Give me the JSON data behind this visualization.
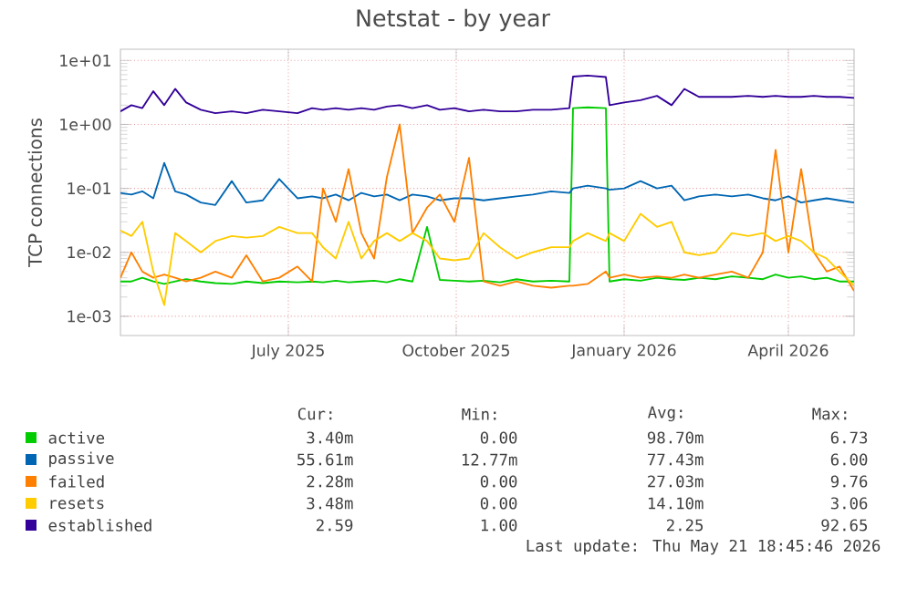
{
  "chart_data": {
    "type": "line",
    "title": "Netstat - by year",
    "ylabel": "TCP connections",
    "log": true,
    "grid": true,
    "legend": "bottom",
    "xlim": [
      "2025-04-14",
      "2026-05-21"
    ],
    "xticks": [
      {
        "value": "2025-07-15",
        "label": "July 2025"
      },
      {
        "value": "2025-10-15",
        "label": "October 2025"
      },
      {
        "value": "2026-01-15",
        "label": "January 2026"
      },
      {
        "value": "2026-04-15",
        "label": "April 2026"
      }
    ],
    "ylim": [
      0.0005,
      15
    ],
    "yticks": [
      {
        "value": 0.001,
        "label": "1e-03"
      },
      {
        "value": 0.01,
        "label": "1e-02"
      },
      {
        "value": 0.1,
        "label": "1e-01"
      },
      {
        "value": 1,
        "label": "1e+00"
      },
      {
        "value": 10,
        "label": "1e+01"
      }
    ],
    "x": [
      "2025-04-14",
      "2025-04-20",
      "2025-04-26",
      "2025-05-02",
      "2025-05-08",
      "2025-05-14",
      "2025-05-20",
      "2025-05-28",
      "2025-06-05",
      "2025-06-14",
      "2025-06-22",
      "2025-07-01",
      "2025-07-10",
      "2025-07-20",
      "2025-07-28",
      "2025-08-03",
      "2025-08-10",
      "2025-08-17",
      "2025-08-24",
      "2025-08-31",
      "2025-09-07",
      "2025-09-14",
      "2025-09-21",
      "2025-09-29",
      "2025-10-06",
      "2025-10-14",
      "2025-10-22",
      "2025-10-30",
      "2025-11-08",
      "2025-11-17",
      "2025-11-26",
      "2025-12-06",
      "2025-12-16",
      "2025-12-18",
      "2025-12-26",
      "2026-01-05",
      "2026-01-07",
      "2026-01-15",
      "2026-01-24",
      "2026-02-02",
      "2026-02-10",
      "2026-02-17",
      "2026-02-25",
      "2026-03-06",
      "2026-03-15",
      "2026-03-24",
      "2026-04-01",
      "2026-04-08",
      "2026-04-15",
      "2026-04-22",
      "2026-04-29",
      "2026-05-06",
      "2026-05-13",
      "2026-05-21"
    ],
    "series": [
      {
        "name": "active",
        "color": "#00cc00",
        "values": [
          0.0035,
          0.0035,
          0.004,
          0.0035,
          0.0032,
          0.0035,
          0.0038,
          0.0035,
          0.0033,
          0.0032,
          0.0035,
          0.0033,
          0.0035,
          0.0034,
          0.0035,
          0.0034,
          0.0036,
          0.0034,
          0.0035,
          0.0036,
          0.0034,
          0.0038,
          0.0035,
          0.025,
          0.0037,
          0.0036,
          0.0035,
          0.0036,
          0.0034,
          0.0038,
          0.0035,
          0.0036,
          0.0035,
          1.8,
          1.85,
          1.8,
          0.0035,
          0.0038,
          0.0036,
          0.004,
          0.0038,
          0.0037,
          0.004,
          0.0038,
          0.0042,
          0.004,
          0.0038,
          0.0045,
          0.004,
          0.0042,
          0.0038,
          0.004,
          0.0035,
          0.0035
        ]
      },
      {
        "name": "passive",
        "color": "#0066b3",
        "values": [
          0.085,
          0.08,
          0.09,
          0.07,
          0.25,
          0.09,
          0.08,
          0.06,
          0.055,
          0.13,
          0.06,
          0.065,
          0.14,
          0.07,
          0.075,
          0.07,
          0.08,
          0.065,
          0.085,
          0.075,
          0.08,
          0.065,
          0.08,
          0.075,
          0.065,
          0.07,
          0.07,
          0.065,
          0.07,
          0.075,
          0.08,
          0.09,
          0.085,
          0.1,
          0.11,
          0.1,
          0.095,
          0.1,
          0.13,
          0.1,
          0.11,
          0.065,
          0.075,
          0.08,
          0.075,
          0.08,
          0.07,
          0.065,
          0.075,
          0.06,
          0.065,
          0.07,
          0.065,
          0.06
        ]
      },
      {
        "name": "failed",
        "color": "#ff8000",
        "values": [
          0.004,
          0.01,
          0.005,
          0.004,
          0.0045,
          0.004,
          0.0035,
          0.004,
          0.005,
          0.004,
          0.009,
          0.0035,
          0.004,
          0.006,
          0.0035,
          0.1,
          0.03,
          0.2,
          0.02,
          0.008,
          0.15,
          1.0,
          0.02,
          0.05,
          0.08,
          0.03,
          0.3,
          0.0035,
          0.003,
          0.0035,
          0.003,
          0.0028,
          0.003,
          0.003,
          0.0032,
          0.005,
          0.004,
          0.0045,
          0.004,
          0.0042,
          0.004,
          0.0045,
          0.004,
          0.0045,
          0.005,
          0.004,
          0.01,
          0.4,
          0.01,
          0.2,
          0.01,
          0.005,
          0.006,
          0.0025
        ]
      },
      {
        "name": "resets",
        "color": "#ffcc00",
        "values": [
          0.022,
          0.018,
          0.03,
          0.005,
          0.0015,
          0.02,
          0.015,
          0.01,
          0.015,
          0.018,
          0.017,
          0.018,
          0.025,
          0.02,
          0.02,
          0.012,
          0.008,
          0.03,
          0.008,
          0.015,
          0.02,
          0.015,
          0.02,
          0.015,
          0.008,
          0.0075,
          0.008,
          0.02,
          0.012,
          0.008,
          0.01,
          0.012,
          0.012,
          0.015,
          0.02,
          0.015,
          0.02,
          0.015,
          0.04,
          0.025,
          0.03,
          0.01,
          0.009,
          0.01,
          0.02,
          0.018,
          0.02,
          0.015,
          0.018,
          0.015,
          0.01,
          0.008,
          0.005,
          0.003
        ]
      },
      {
        "name": "established",
        "color": "#330099",
        "values": [
          1.6,
          2.0,
          1.8,
          3.3,
          2.0,
          3.6,
          2.2,
          1.7,
          1.5,
          1.6,
          1.5,
          1.7,
          1.6,
          1.5,
          1.8,
          1.7,
          1.8,
          1.7,
          1.8,
          1.7,
          1.9,
          2.0,
          1.8,
          2.0,
          1.7,
          1.8,
          1.6,
          1.7,
          1.6,
          1.6,
          1.7,
          1.7,
          1.8,
          5.6,
          5.8,
          5.5,
          2.0,
          2.2,
          2.4,
          2.8,
          2.0,
          3.6,
          2.7,
          2.7,
          2.7,
          2.8,
          2.7,
          2.8,
          2.7,
          2.7,
          2.8,
          2.7,
          2.7,
          2.6
        ]
      }
    ],
    "annotations": [
      "Cur:",
      "Min:",
      "Avg:",
      "Max:",
      "3.40m",
      "0.00",
      "98.70m",
      "6.73",
      "55.61m",
      "12.77m",
      "77.43m",
      "6.00",
      "2.28m",
      "0.00",
      "27.03m",
      "9.76",
      "3.48m",
      "0.00",
      "14.10m",
      "3.06",
      "2.59",
      "1.00",
      "2.25",
      "92.65",
      "Last update: Thu May 21 18:45:46 2026"
    ]
  }
}
